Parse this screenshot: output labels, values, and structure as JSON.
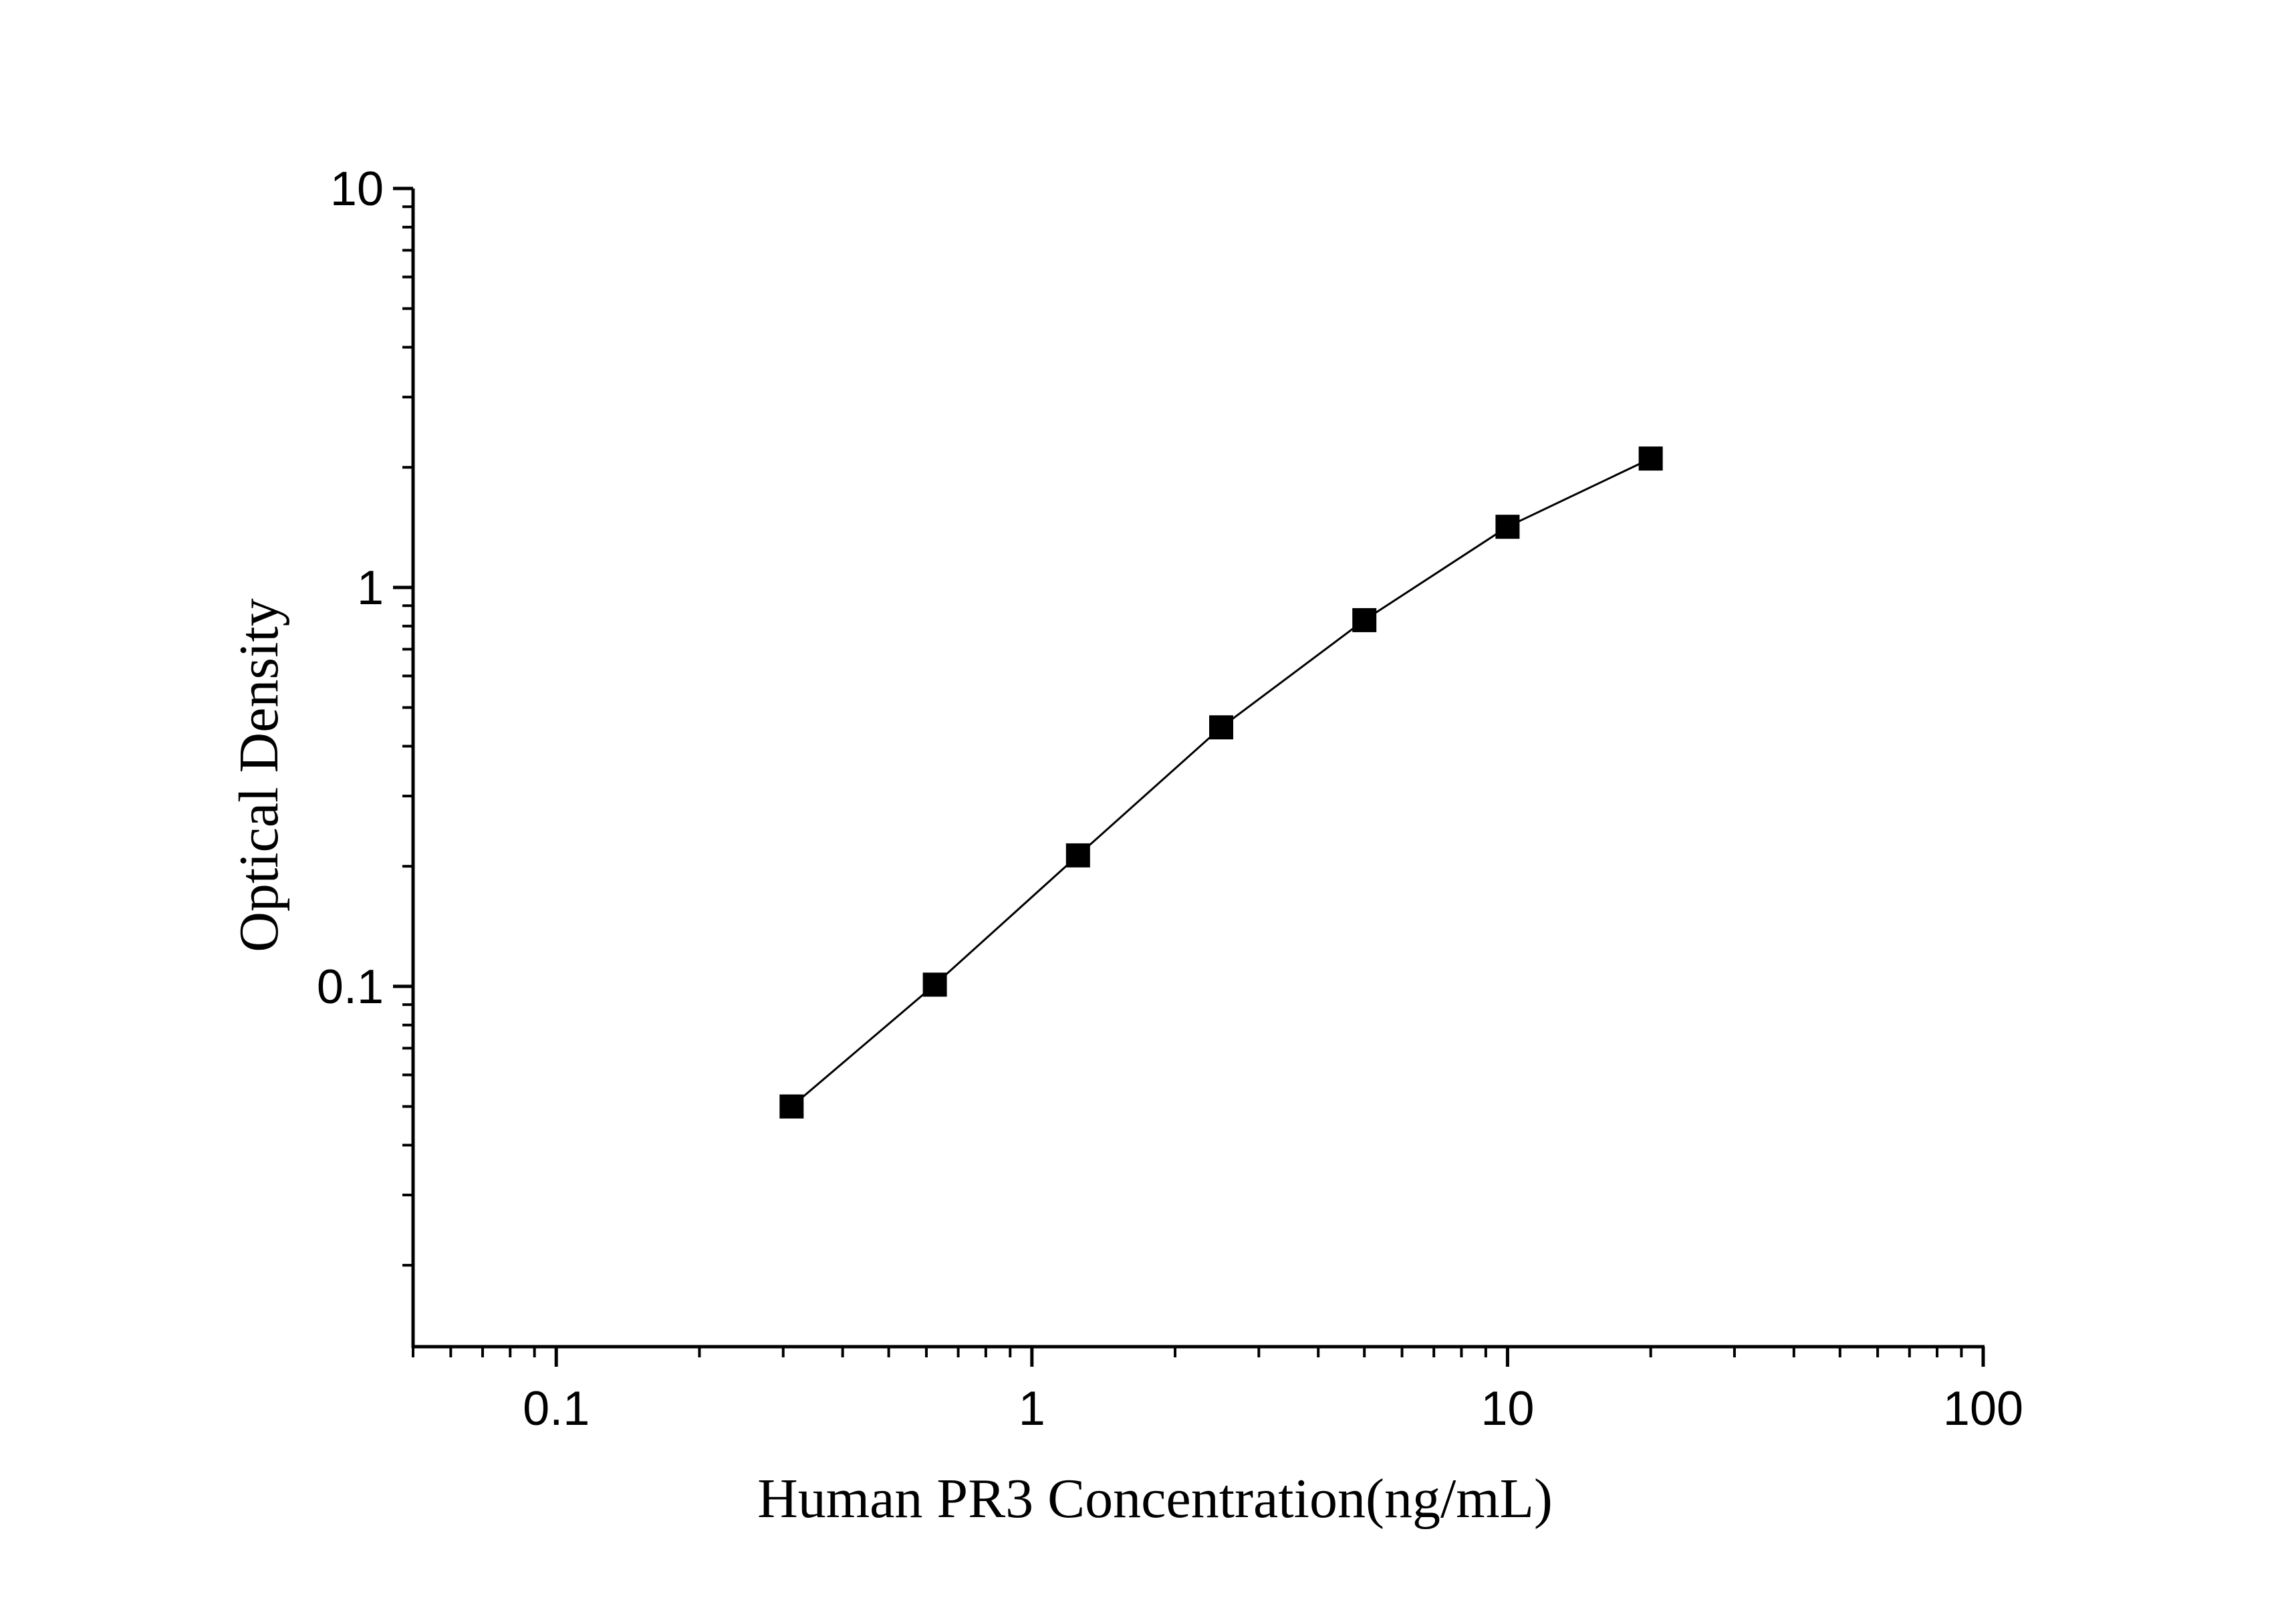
{
  "chart_data": {
    "type": "line",
    "title": "",
    "xlabel": "Human PR3  Concentration(ng/mL)",
    "ylabel": "Optical Density",
    "x_scale": "log",
    "y_scale": "log",
    "xlim": [
      0.05,
      100
    ],
    "ylim": [
      0.0125,
      10
    ],
    "x_ticks": [
      {
        "value": 0.1,
        "label": "0.1"
      },
      {
        "value": 1,
        "label": "1"
      },
      {
        "value": 10,
        "label": "10"
      },
      {
        "value": 100,
        "label": "100"
      }
    ],
    "y_ticks": [
      {
        "value": 0.1,
        "label": "0.1"
      },
      {
        "value": 1,
        "label": "1"
      },
      {
        "value": 10,
        "label": "10"
      }
    ],
    "grid": false,
    "legend": "none",
    "marker": "square",
    "series": [
      {
        "x": [
          0.3125,
          0.625,
          1.25,
          2.5,
          5,
          10,
          20
        ],
        "y": [
          0.05,
          0.101,
          0.213,
          0.446,
          0.828,
          1.419,
          2.104
        ]
      }
    ],
    "colors": {
      "line": "#000000",
      "marker": "#000000",
      "axis": "#000000"
    }
  }
}
